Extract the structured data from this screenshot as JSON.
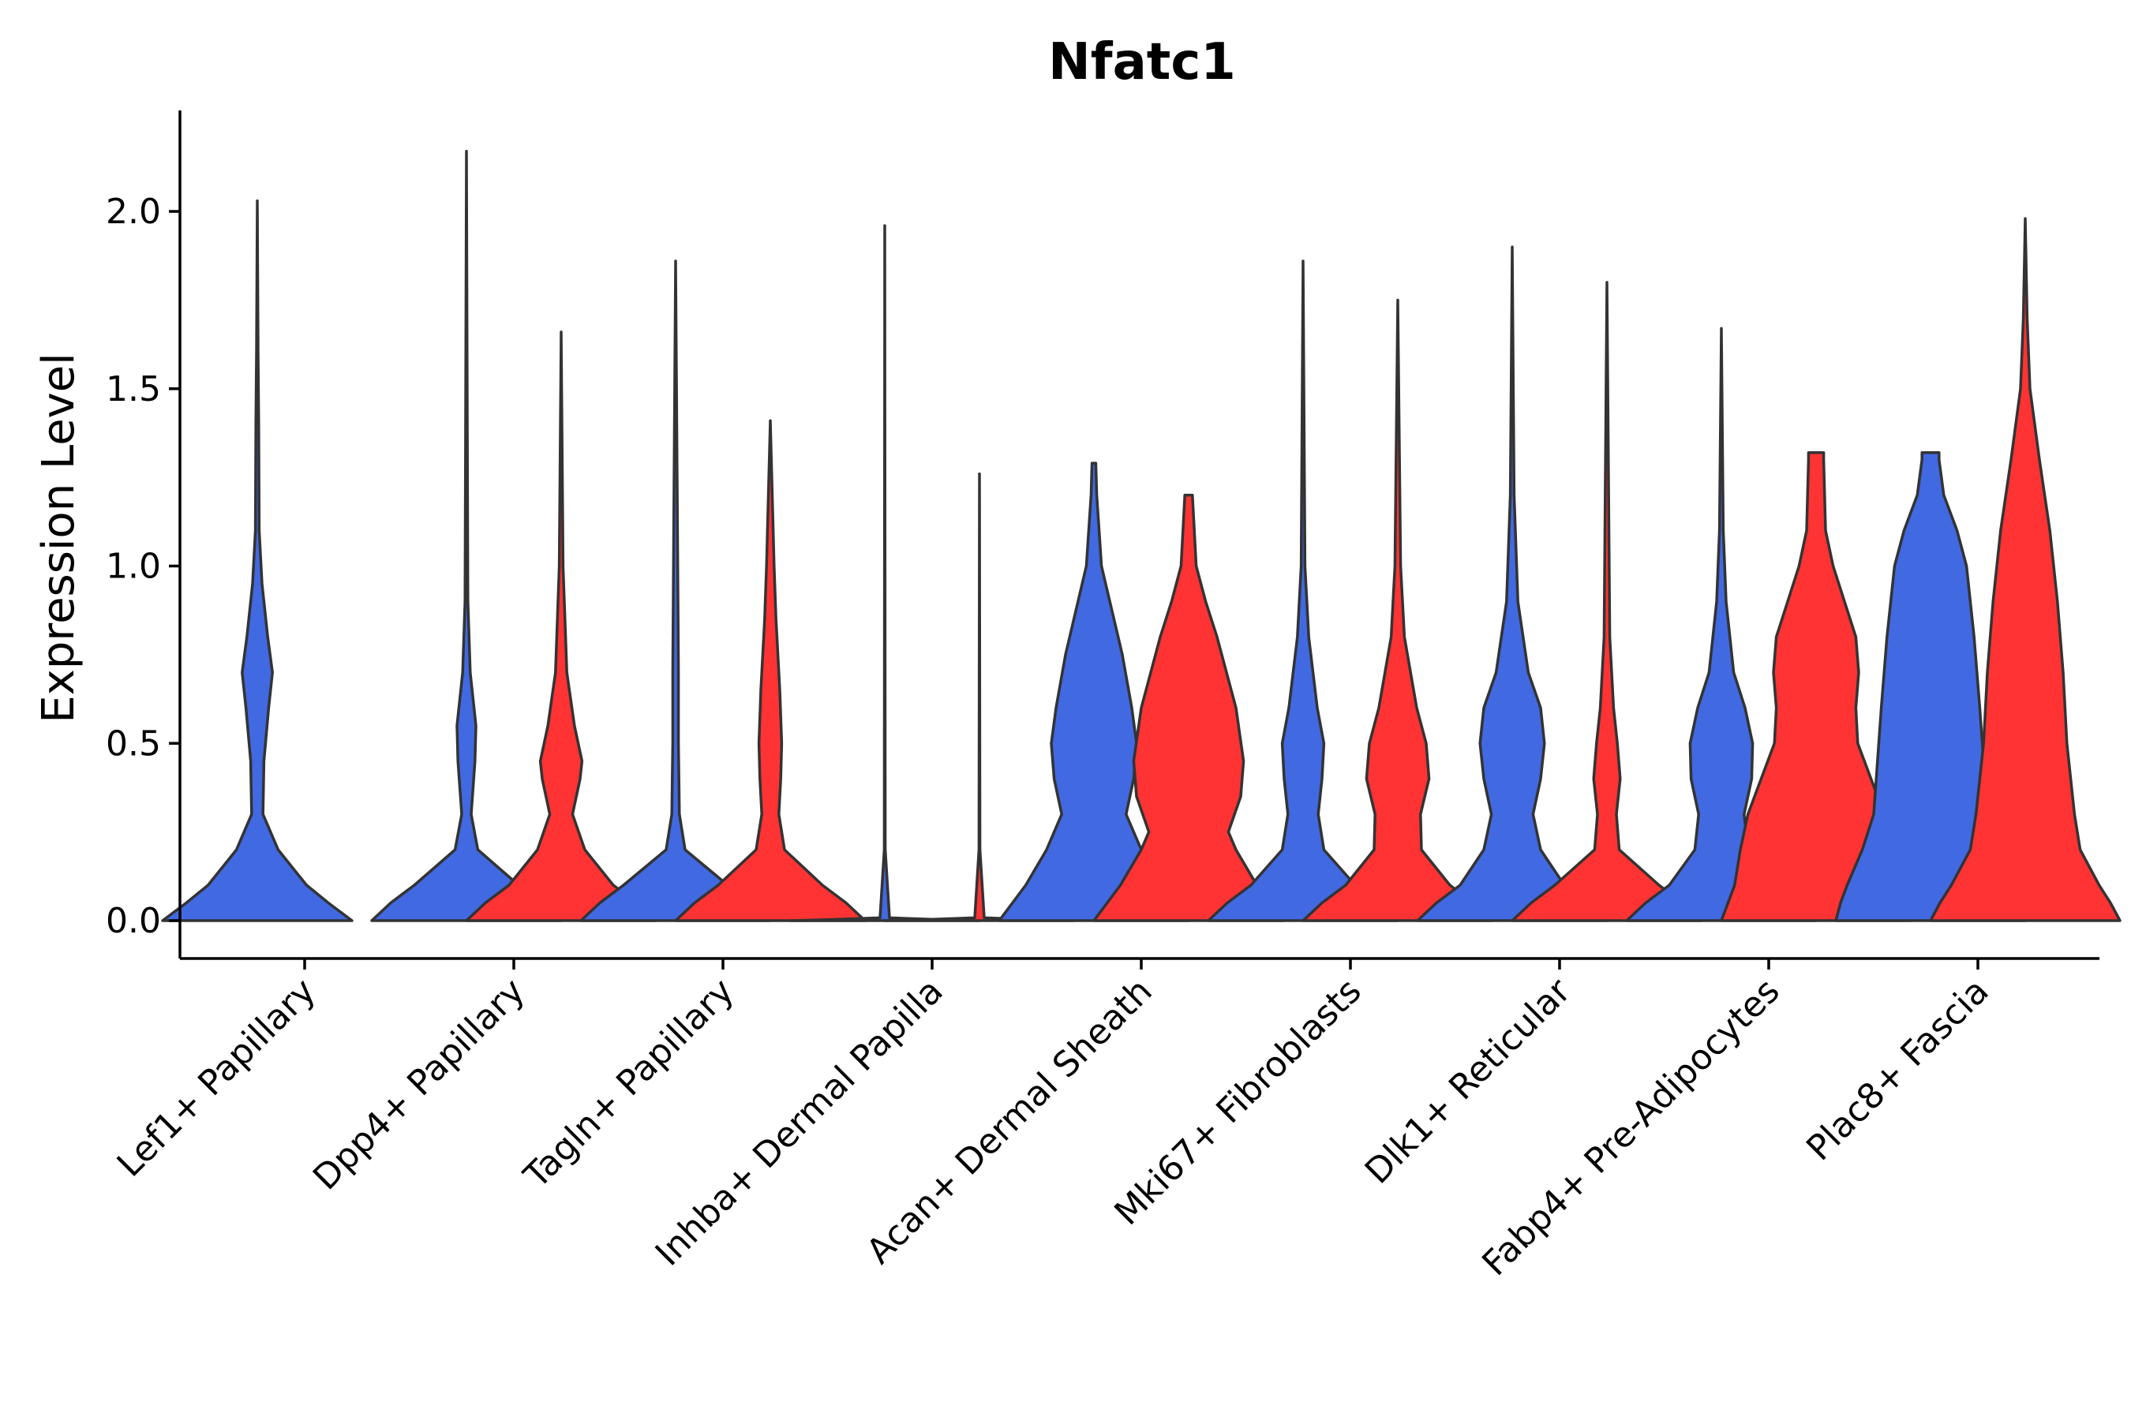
{
  "chart_data": {
    "type": "violin",
    "title": "Nfatc1",
    "xlabel": "",
    "ylabel": "Expression Level",
    "ylim": [
      -0.11,
      2.28
    ],
    "yticks": [
      0.0,
      0.5,
      1.0,
      1.5,
      2.0
    ],
    "ytick_labels": [
      "0.0",
      "0.5",
      "1.0",
      "1.5",
      "2.0"
    ],
    "grid": false,
    "legend": "none",
    "colors": {
      "blue": "#4169E1",
      "red": "#FF3333",
      "outline": "#333333"
    },
    "categories": [
      "Lef1+ Papillary",
      "Dpp4+ Papillary",
      "Tagln+ Papillary",
      "Inhba+ Dermal Papilla",
      "Acan+ Dermal Sheath",
      "Mki67+ Fibroblasts",
      "Dlk1+ Reticular",
      "Fabp4+ Pre-Adipocytes",
      "Plac8+ Fascia"
    ],
    "violins": [
      {
        "category": "Lef1+ Papillary",
        "group": "blue",
        "max": 2.03,
        "profile": [
          [
            0,
            1.0
          ],
          [
            0.05,
            0.75
          ],
          [
            0.1,
            0.52
          ],
          [
            0.2,
            0.22
          ],
          [
            0.3,
            0.06
          ],
          [
            0.45,
            0.07
          ],
          [
            0.6,
            0.12
          ],
          [
            0.7,
            0.16
          ],
          [
            0.8,
            0.11
          ],
          [
            0.95,
            0.05
          ],
          [
            1.1,
            0.02
          ],
          [
            1.4,
            0.015
          ],
          [
            1.6,
            0.008
          ],
          [
            2.03,
            0.0
          ]
        ]
      },
      {
        "category": "Dpp4+ Papillary",
        "group": "blue",
        "max": 2.17,
        "profile": [
          [
            0,
            1.0
          ],
          [
            0.05,
            0.8
          ],
          [
            0.1,
            0.55
          ],
          [
            0.2,
            0.12
          ],
          [
            0.3,
            0.05
          ],
          [
            0.45,
            0.09
          ],
          [
            0.55,
            0.1
          ],
          [
            0.7,
            0.04
          ],
          [
            0.9,
            0.015
          ],
          [
            1.3,
            0.01
          ],
          [
            2.17,
            0.0
          ]
        ]
      },
      {
        "category": "Dpp4+ Papillary",
        "group": "red",
        "max": 1.66,
        "profile": [
          [
            0,
            1.0
          ],
          [
            0.05,
            0.8
          ],
          [
            0.1,
            0.55
          ],
          [
            0.2,
            0.25
          ],
          [
            0.3,
            0.12
          ],
          [
            0.4,
            0.2
          ],
          [
            0.45,
            0.22
          ],
          [
            0.55,
            0.14
          ],
          [
            0.7,
            0.06
          ],
          [
            1.0,
            0.02
          ],
          [
            1.66,
            0.0
          ]
        ]
      },
      {
        "category": "Tagln+ Papillary",
        "group": "blue",
        "max": 1.86,
        "profile": [
          [
            0,
            1.0
          ],
          [
            0.05,
            0.8
          ],
          [
            0.1,
            0.55
          ],
          [
            0.2,
            0.1
          ],
          [
            0.3,
            0.04
          ],
          [
            0.5,
            0.03
          ],
          [
            0.7,
            0.03
          ],
          [
            1.1,
            0.02
          ],
          [
            1.86,
            0.0
          ]
        ]
      },
      {
        "category": "Tagln+ Papillary",
        "group": "red",
        "max": 1.41,
        "profile": [
          [
            0,
            1.0
          ],
          [
            0.05,
            0.8
          ],
          [
            0.1,
            0.55
          ],
          [
            0.2,
            0.15
          ],
          [
            0.3,
            0.09
          ],
          [
            0.4,
            0.11
          ],
          [
            0.5,
            0.12
          ],
          [
            0.65,
            0.1
          ],
          [
            0.85,
            0.06
          ],
          [
            1.0,
            0.04
          ],
          [
            1.41,
            0.0
          ]
        ]
      },
      {
        "category": "Inhba+ Dermal Papilla",
        "group": "blue",
        "max": 1.96,
        "profile": [
          [
            0,
            1.0
          ],
          [
            0.003,
            0.6
          ],
          [
            0.008,
            0.05
          ],
          [
            0.2,
            0.005
          ],
          [
            1.96,
            0.0
          ]
        ]
      },
      {
        "category": "Inhba+ Dermal Papilla",
        "group": "red",
        "max": 1.26,
        "profile": [
          [
            0,
            1.0
          ],
          [
            0.003,
            0.6
          ],
          [
            0.008,
            0.05
          ],
          [
            0.2,
            0.005
          ],
          [
            1.26,
            0.0
          ]
        ]
      },
      {
        "category": "Acan+ Dermal Sheath",
        "group": "blue",
        "max": 1.29,
        "profile": [
          [
            0,
            1.0
          ],
          [
            0.05,
            0.86
          ],
          [
            0.1,
            0.72
          ],
          [
            0.2,
            0.5
          ],
          [
            0.3,
            0.34
          ],
          [
            0.4,
            0.42
          ],
          [
            0.5,
            0.45
          ],
          [
            0.6,
            0.4
          ],
          [
            0.75,
            0.3
          ],
          [
            1.0,
            0.08
          ],
          [
            1.2,
            0.03
          ],
          [
            1.29,
            0.02
          ]
        ]
      },
      {
        "category": "Acan+ Dermal Sheath",
        "group": "red",
        "max": 1.2,
        "profile": [
          [
            0,
            1.0
          ],
          [
            0.05,
            0.86
          ],
          [
            0.1,
            0.72
          ],
          [
            0.2,
            0.5
          ],
          [
            0.25,
            0.42
          ],
          [
            0.35,
            0.55
          ],
          [
            0.45,
            0.58
          ],
          [
            0.6,
            0.5
          ],
          [
            0.8,
            0.3
          ],
          [
            0.9,
            0.18
          ],
          [
            1.0,
            0.08
          ],
          [
            1.2,
            0.04
          ]
        ]
      },
      {
        "category": "Mki67+ Fibroblasts",
        "group": "blue",
        "max": 1.86,
        "profile": [
          [
            0,
            1.0
          ],
          [
            0.05,
            0.8
          ],
          [
            0.1,
            0.55
          ],
          [
            0.2,
            0.22
          ],
          [
            0.3,
            0.16
          ],
          [
            0.4,
            0.2
          ],
          [
            0.5,
            0.22
          ],
          [
            0.6,
            0.15
          ],
          [
            0.8,
            0.06
          ],
          [
            1.0,
            0.02
          ],
          [
            1.86,
            0.0
          ]
        ]
      },
      {
        "category": "Mki67+ Fibroblasts",
        "group": "red",
        "max": 1.75,
        "profile": [
          [
            0,
            1.0
          ],
          [
            0.05,
            0.8
          ],
          [
            0.1,
            0.55
          ],
          [
            0.2,
            0.25
          ],
          [
            0.3,
            0.24
          ],
          [
            0.4,
            0.33
          ],
          [
            0.5,
            0.3
          ],
          [
            0.6,
            0.2
          ],
          [
            0.8,
            0.07
          ],
          [
            1.0,
            0.03
          ],
          [
            1.75,
            0.0
          ]
        ]
      },
      {
        "category": "Dlk1+ Reticular",
        "group": "blue",
        "max": 1.9,
        "profile": [
          [
            0,
            1.0
          ],
          [
            0.05,
            0.8
          ],
          [
            0.1,
            0.55
          ],
          [
            0.2,
            0.3
          ],
          [
            0.3,
            0.22
          ],
          [
            0.4,
            0.3
          ],
          [
            0.5,
            0.34
          ],
          [
            0.6,
            0.3
          ],
          [
            0.7,
            0.17
          ],
          [
            0.9,
            0.06
          ],
          [
            1.2,
            0.02
          ],
          [
            1.9,
            0.0
          ]
        ]
      },
      {
        "category": "Dlk1+ Reticular",
        "group": "red",
        "max": 1.8,
        "profile": [
          [
            0,
            1.0
          ],
          [
            0.05,
            0.8
          ],
          [
            0.1,
            0.55
          ],
          [
            0.2,
            0.13
          ],
          [
            0.3,
            0.1
          ],
          [
            0.4,
            0.14
          ],
          [
            0.5,
            0.11
          ],
          [
            0.6,
            0.07
          ],
          [
            0.8,
            0.03
          ],
          [
            1.8,
            0.0
          ]
        ]
      },
      {
        "category": "Fabp4+ Pre-Adipocytes",
        "group": "blue",
        "max": 1.67,
        "profile": [
          [
            0,
            1.0
          ],
          [
            0.05,
            0.8
          ],
          [
            0.1,
            0.55
          ],
          [
            0.2,
            0.28
          ],
          [
            0.3,
            0.24
          ],
          [
            0.4,
            0.32
          ],
          [
            0.5,
            0.33
          ],
          [
            0.6,
            0.25
          ],
          [
            0.7,
            0.13
          ],
          [
            0.9,
            0.05
          ],
          [
            1.1,
            0.02
          ],
          [
            1.67,
            0.0
          ]
        ]
      },
      {
        "category": "Fabp4+ Pre-Adipocytes",
        "group": "red",
        "max": 1.32,
        "profile": [
          [
            0,
            1.0
          ],
          [
            0.05,
            0.93
          ],
          [
            0.1,
            0.86
          ],
          [
            0.2,
            0.8
          ],
          [
            0.3,
            0.72
          ],
          [
            0.4,
            0.58
          ],
          [
            0.5,
            0.44
          ],
          [
            0.6,
            0.42
          ],
          [
            0.7,
            0.45
          ],
          [
            0.8,
            0.42
          ],
          [
            0.9,
            0.3
          ],
          [
            1.0,
            0.18
          ],
          [
            1.1,
            0.1
          ],
          [
            1.3,
            0.08
          ],
          [
            1.32,
            0.08
          ]
        ]
      },
      {
        "category": "Plac8+ Fascia",
        "group": "blue",
        "max": 1.32,
        "profile": [
          [
            0,
            1.0
          ],
          [
            0.05,
            0.95
          ],
          [
            0.1,
            0.88
          ],
          [
            0.2,
            0.72
          ],
          [
            0.3,
            0.6
          ],
          [
            0.45,
            0.56
          ],
          [
            0.6,
            0.52
          ],
          [
            0.8,
            0.46
          ],
          [
            1.0,
            0.38
          ],
          [
            1.1,
            0.28
          ],
          [
            1.2,
            0.14
          ],
          [
            1.3,
            0.09
          ],
          [
            1.32,
            0.09
          ]
        ]
      },
      {
        "category": "Plac8+ Fascia",
        "group": "red",
        "max": 1.98,
        "profile": [
          [
            0,
            1.0
          ],
          [
            0.05,
            0.9
          ],
          [
            0.1,
            0.78
          ],
          [
            0.2,
            0.58
          ],
          [
            0.3,
            0.52
          ],
          [
            0.4,
            0.48
          ],
          [
            0.5,
            0.44
          ],
          [
            0.7,
            0.4
          ],
          [
            0.9,
            0.34
          ],
          [
            1.1,
            0.26
          ],
          [
            1.3,
            0.15
          ],
          [
            1.5,
            0.05
          ],
          [
            1.7,
            0.02
          ],
          [
            1.98,
            0.0
          ]
        ]
      }
    ]
  }
}
